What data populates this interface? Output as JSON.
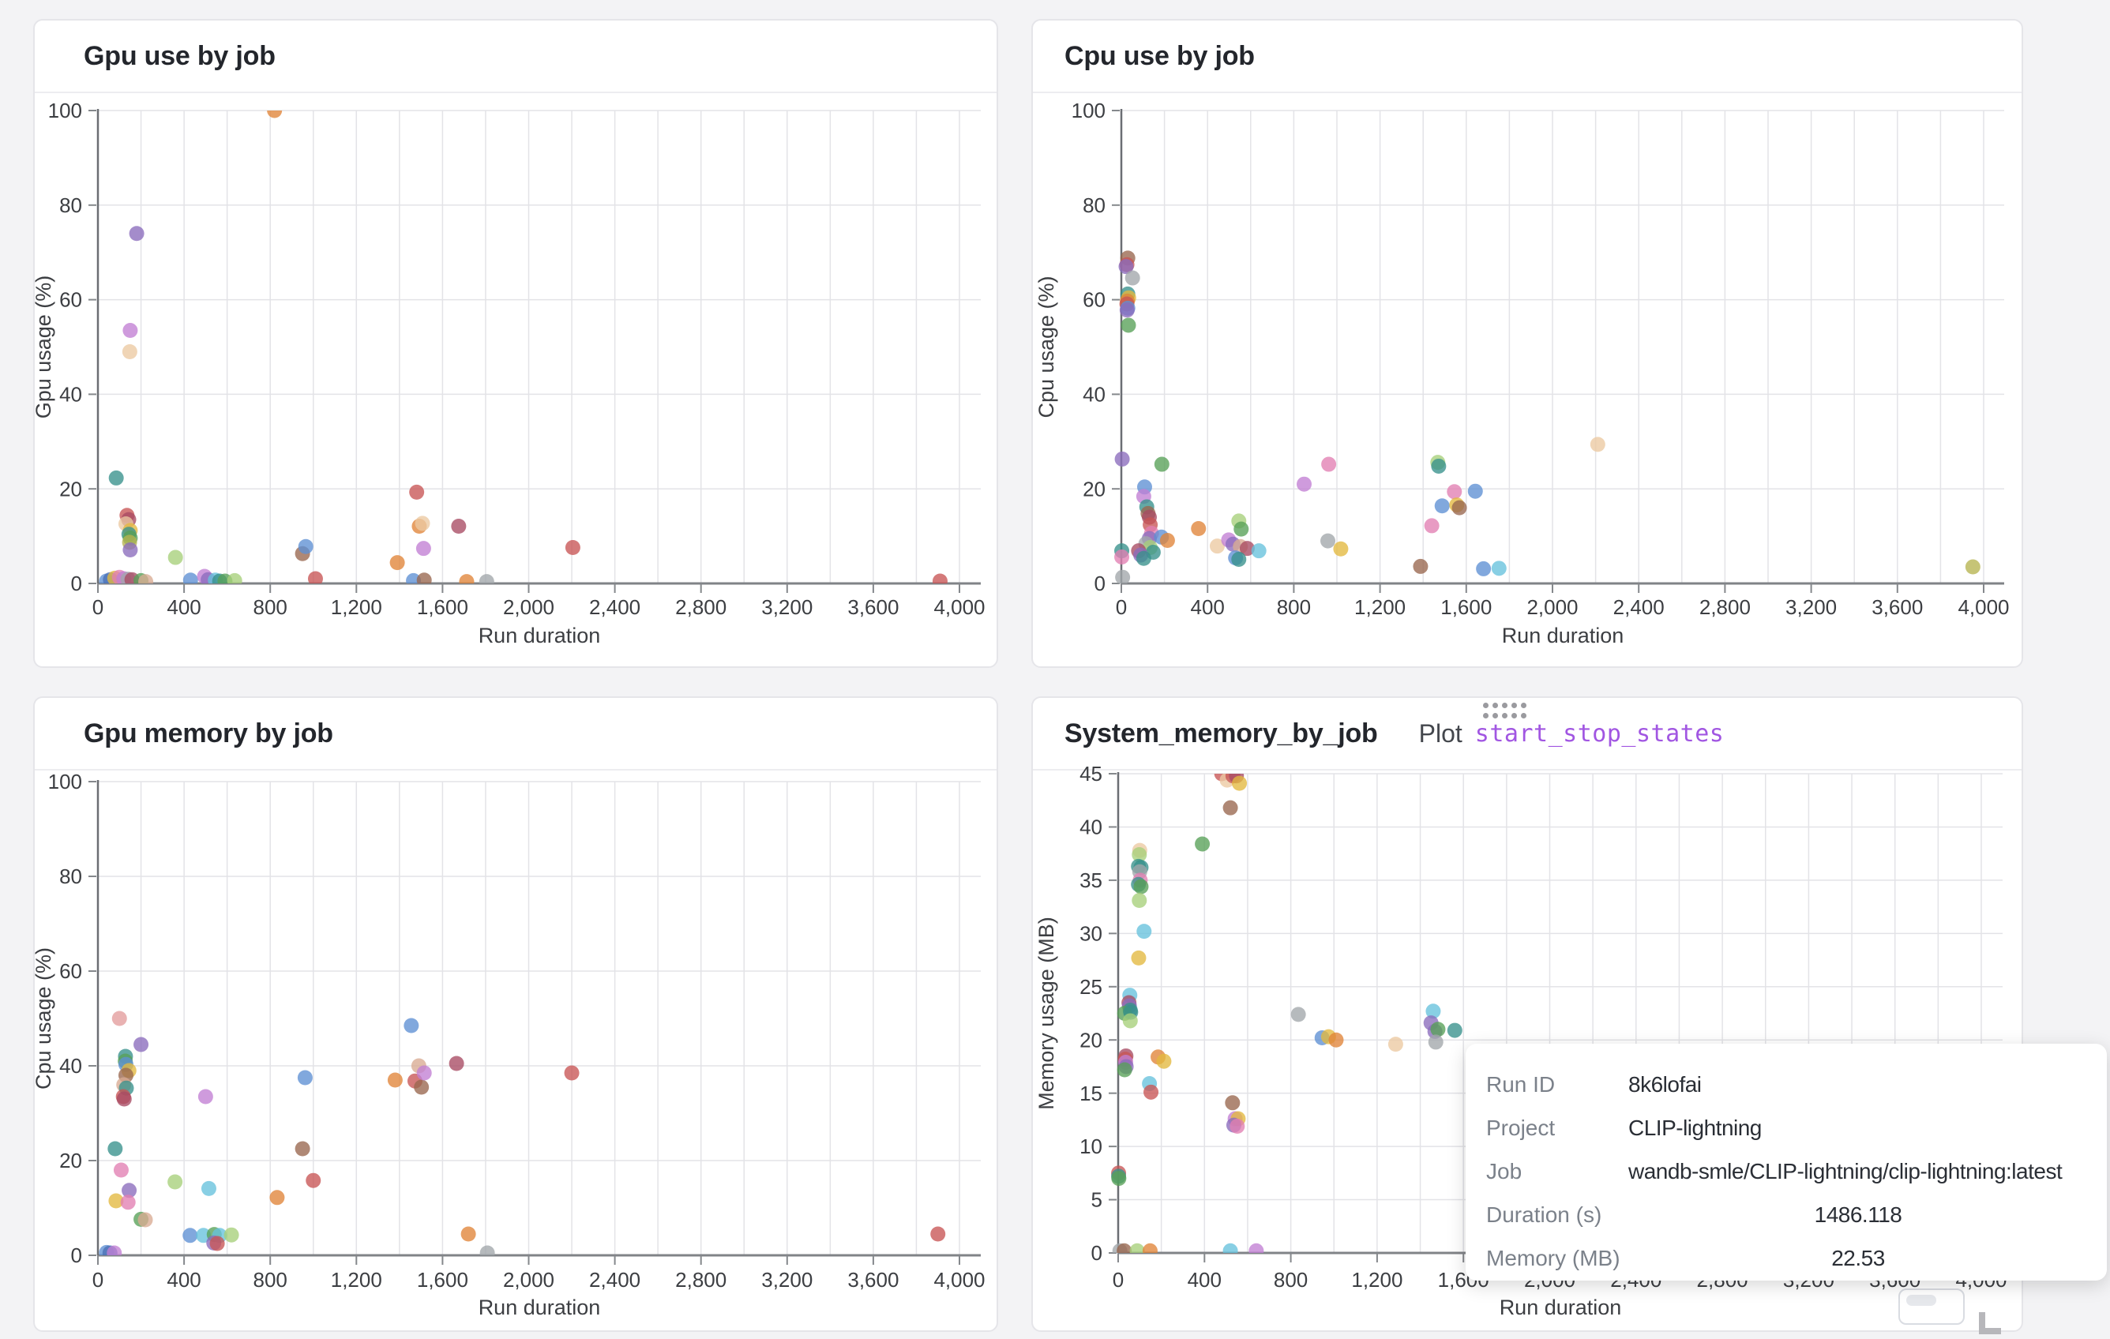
{
  "page": {
    "background": "#f3f3f5",
    "accent_link_color": "#a156e2"
  },
  "palette": {
    "blue": "#5d8fd3",
    "navy": "#4a6fb5",
    "lightblue": "#8ab4e0",
    "orange": "#e08438",
    "peach": "#ecc9a2",
    "tan": "#d8ab92",
    "green": "#57a057",
    "lightgreen": "#a6cf7a",
    "olive": "#b6b350",
    "red": "#c85454",
    "salmon": "#e39c9c",
    "maroon": "#a84a63",
    "purple": "#8a6bbd",
    "orchid": "#c27fd4",
    "pink": "#e17fb2",
    "brown": "#99664e",
    "gray": "#a2a6ab",
    "yellow": "#e3b93f",
    "cyan": "#67c2dc",
    "teal": "#37918c"
  },
  "chart_data": [
    {
      "type": "scatter",
      "title": "Gpu use by job",
      "xlabel": "Run duration",
      "ylabel": "Gpu usage (%)",
      "xlim": [
        0,
        4000
      ],
      "ylim": [
        0,
        100
      ],
      "xticks": [
        0,
        400,
        800,
        1200,
        1600,
        2000,
        2400,
        2800,
        3200,
        3600,
        4000
      ],
      "yticks": [
        0,
        20,
        40,
        60,
        80,
        100
      ],
      "xgrid_step": 200,
      "grid": true,
      "legend": "none",
      "points": [
        [
          820,
          100,
          "orange"
        ],
        [
          180,
          74,
          "purple"
        ],
        [
          150,
          53.5,
          "orchid"
        ],
        [
          148,
          49,
          "peach"
        ],
        [
          85,
          22.3,
          "teal"
        ],
        [
          135,
          14.4,
          "red"
        ],
        [
          143,
          13.5,
          "maroon"
        ],
        [
          130,
          12.6,
          "peach"
        ],
        [
          150,
          11.2,
          "yellow"
        ],
        [
          144,
          10.4,
          "teal"
        ],
        [
          150,
          9.6,
          "green"
        ],
        [
          147,
          8.7,
          "olive"
        ],
        [
          150,
          7.1,
          "purple"
        ],
        [
          360,
          5.5,
          "lightgreen"
        ],
        [
          40,
          0.5,
          "blue"
        ],
        [
          58,
          0.8,
          "navy"
        ],
        [
          78,
          1.1,
          "yellow"
        ],
        [
          100,
          1.3,
          "pink"
        ],
        [
          120,
          1.0,
          "orchid"
        ],
        [
          140,
          0.9,
          "gray"
        ],
        [
          158,
          0.8,
          "maroon"
        ],
        [
          200,
          0.6,
          "green"
        ],
        [
          222,
          0.4,
          "tan"
        ],
        [
          430,
          0.7,
          "blue"
        ],
        [
          495,
          1.5,
          "orchid"
        ],
        [
          512,
          0.8,
          "purple"
        ],
        [
          545,
          0.7,
          "cyan"
        ],
        [
          565,
          0.5,
          "teal"
        ],
        [
          590,
          0.5,
          "green"
        ],
        [
          635,
          0.6,
          "lightgreen"
        ],
        [
          950,
          6.3,
          "brown"
        ],
        [
          965,
          7.8,
          "blue"
        ],
        [
          1010,
          1.0,
          "red"
        ],
        [
          1390,
          4.4,
          "orange"
        ],
        [
          1465,
          0.6,
          "blue"
        ],
        [
          1480,
          19.3,
          "red"
        ],
        [
          1492,
          12.1,
          "orange"
        ],
        [
          1507,
          12.7,
          "peach"
        ],
        [
          1512,
          7.4,
          "orchid"
        ],
        [
          1515,
          0.7,
          "brown"
        ],
        [
          1675,
          12.1,
          "maroon"
        ],
        [
          1712,
          0.4,
          "orange"
        ],
        [
          1805,
          0.4,
          "gray"
        ],
        [
          2205,
          7.6,
          "red"
        ],
        [
          3910,
          0.5,
          "red"
        ]
      ]
    },
    {
      "type": "scatter",
      "title": "Cpu use by job",
      "xlabel": "Run duration",
      "ylabel": "Cpu usage (%)",
      "xlim": [
        0,
        4000
      ],
      "ylim": [
        0,
        100
      ],
      "xticks": [
        0,
        400,
        800,
        1200,
        1600,
        2000,
        2400,
        2800,
        3200,
        3600,
        4000
      ],
      "yticks": [
        0,
        20,
        40,
        60,
        80,
        100
      ],
      "xgrid_step": 200,
      "grid": true,
      "legend": "none",
      "points": [
        [
          30,
          68.8,
          "brown"
        ],
        [
          26,
          67.4,
          "red"
        ],
        [
          22,
          67.0,
          "purple"
        ],
        [
          52,
          64.6,
          "gray"
        ],
        [
          30,
          61.2,
          "teal"
        ],
        [
          34,
          60.4,
          "yellow"
        ],
        [
          28,
          59.7,
          "orange"
        ],
        [
          26,
          59.1,
          "red"
        ],
        [
          30,
          58.2,
          "blue"
        ],
        [
          27,
          57.8,
          "purple"
        ],
        [
          33,
          54.6,
          "green"
        ],
        [
          4,
          26.3,
          "purple"
        ],
        [
          188,
          25.2,
          "green"
        ],
        [
          108,
          20.4,
          "blue"
        ],
        [
          104,
          18.4,
          "orchid"
        ],
        [
          118,
          16.2,
          "teal"
        ],
        [
          124,
          14.8,
          "brown"
        ],
        [
          130,
          14.0,
          "maroon"
        ],
        [
          134,
          12.4,
          "red"
        ],
        [
          140,
          10.6,
          "pink"
        ],
        [
          130,
          9.5,
          "purple"
        ],
        [
          186,
          9.8,
          "blue"
        ],
        [
          214,
          9.1,
          "orange"
        ],
        [
          114,
          8.4,
          "gray"
        ],
        [
          134,
          7.6,
          "lightgreen"
        ],
        [
          148,
          6.6,
          "teal"
        ],
        [
          80,
          6.9,
          "maroon"
        ],
        [
          90,
          6.0,
          "purple"
        ],
        [
          104,
          5.3,
          "teal"
        ],
        [
          2,
          6.9,
          "teal"
        ],
        [
          2,
          5.6,
          "pink"
        ],
        [
          6,
          1.3,
          "gray"
        ],
        [
          358,
          11.6,
          "orange"
        ],
        [
          445,
          7.9,
          "peach"
        ],
        [
          498,
          9.2,
          "orchid"
        ],
        [
          518,
          8.3,
          "purple"
        ],
        [
          545,
          13.2,
          "lightgreen"
        ],
        [
          556,
          11.5,
          "green"
        ],
        [
          552,
          7.8,
          "tan"
        ],
        [
          584,
          7.4,
          "maroon"
        ],
        [
          530,
          5.4,
          "blue"
        ],
        [
          545,
          5.1,
          "teal"
        ],
        [
          638,
          6.9,
          "cyan"
        ],
        [
          848,
          21.0,
          "orchid"
        ],
        [
          962,
          25.2,
          "pink"
        ],
        [
          958,
          9.0,
          "gray"
        ],
        [
          1018,
          7.3,
          "yellow"
        ],
        [
          1388,
          3.6,
          "brown"
        ],
        [
          1440,
          12.2,
          "pink"
        ],
        [
          1468,
          25.6,
          "lightgreen"
        ],
        [
          1472,
          24.8,
          "teal"
        ],
        [
          1488,
          16.4,
          "blue"
        ],
        [
          1545,
          19.4,
          "pink"
        ],
        [
          1556,
          16.6,
          "yellow"
        ],
        [
          1568,
          16.0,
          "brown"
        ],
        [
          1642,
          19.5,
          "blue"
        ],
        [
          1680,
          3.1,
          "blue"
        ],
        [
          1752,
          3.2,
          "cyan"
        ],
        [
          2210,
          29.4,
          "peach"
        ],
        [
          3950,
          3.5,
          "olive"
        ]
      ]
    },
    {
      "type": "scatter",
      "title": "Gpu memory by job",
      "xlabel": "Run duration",
      "ylabel": "Cpu usage (%)",
      "xlim": [
        0,
        4000
      ],
      "ylim": [
        0,
        100
      ],
      "xticks": [
        0,
        400,
        800,
        1200,
        1600,
        2000,
        2400,
        2800,
        3200,
        3600,
        4000
      ],
      "yticks": [
        0,
        20,
        40,
        60,
        80,
        100
      ],
      "xgrid_step": 200,
      "grid": true,
      "legend": "none",
      "points": [
        [
          100,
          50,
          "salmon"
        ],
        [
          200,
          44.5,
          "purple"
        ],
        [
          128,
          42,
          "teal"
        ],
        [
          127,
          41,
          "green"
        ],
        [
          130,
          40.3,
          "blue"
        ],
        [
          144,
          39,
          "yellow"
        ],
        [
          130,
          38,
          "brown"
        ],
        [
          120,
          36,
          "tan"
        ],
        [
          132,
          35.3,
          "teal"
        ],
        [
          118,
          33.5,
          "red"
        ],
        [
          122,
          33,
          "maroon"
        ],
        [
          500,
          33.5,
          "orchid"
        ],
        [
          80,
          22.5,
          "teal"
        ],
        [
          108,
          18,
          "pink"
        ],
        [
          358,
          15.5,
          "lightgreen"
        ],
        [
          145,
          13.7,
          "purple"
        ],
        [
          515,
          14.1,
          "cyan"
        ],
        [
          84,
          11.5,
          "yellow"
        ],
        [
          140,
          11.2,
          "pink"
        ],
        [
          200,
          7.6,
          "green"
        ],
        [
          220,
          7.5,
          "tan"
        ],
        [
          428,
          4.2,
          "blue"
        ],
        [
          490,
          4.2,
          "cyan"
        ],
        [
          540,
          4.4,
          "green"
        ],
        [
          565,
          4.2,
          "cyan"
        ],
        [
          620,
          4.3,
          "lightgreen"
        ],
        [
          538,
          2.6,
          "purple"
        ],
        [
          554,
          2.5,
          "red"
        ],
        [
          40,
          0.6,
          "blue"
        ],
        [
          56,
          0.5,
          "navy"
        ],
        [
          76,
          0.5,
          "orchid"
        ],
        [
          832,
          12.2,
          "orange"
        ],
        [
          950,
          22.5,
          "brown"
        ],
        [
          962,
          37.5,
          "blue"
        ],
        [
          1000,
          15.8,
          "red"
        ],
        [
          1380,
          37,
          "orange"
        ],
        [
          1455,
          48.5,
          "blue"
        ],
        [
          1472,
          36.8,
          "red"
        ],
        [
          1490,
          40,
          "tan"
        ],
        [
          1502,
          35.5,
          "brown"
        ],
        [
          1515,
          38.5,
          "orchid"
        ],
        [
          1665,
          40.5,
          "maroon"
        ],
        [
          1720,
          4.5,
          "orange"
        ],
        [
          1808,
          0.5,
          "gray"
        ],
        [
          2200,
          38.5,
          "red"
        ],
        [
          3900,
          4.5,
          "red"
        ]
      ]
    },
    {
      "type": "scatter",
      "title": "System_memory_by_job",
      "plot_label": "Plot",
      "plot_link": "start_stop_states",
      "xlabel": "Run duration",
      "ylabel": "Memory usage (MB)",
      "xlim": [
        0,
        4000
      ],
      "ylim": [
        0,
        45
      ],
      "xticks": [
        0,
        400,
        800,
        1200,
        1600,
        2000,
        2400,
        2800,
        3200,
        3600,
        4000
      ],
      "yticks": [
        0,
        5,
        10,
        15,
        20,
        25,
        30,
        35,
        40,
        45
      ],
      "xgrid_step": 200,
      "grid": true,
      "legend": "none",
      "points": [
        [
          480,
          45,
          "red"
        ],
        [
          505,
          44.4,
          "peach"
        ],
        [
          532,
          44.8,
          "red"
        ],
        [
          548,
          44.8,
          "maroon"
        ],
        [
          562,
          44.1,
          "yellow"
        ],
        [
          520,
          41.8,
          "brown"
        ],
        [
          390,
          38.4,
          "green"
        ],
        [
          100,
          37.8,
          "peach"
        ],
        [
          98,
          37.4,
          "lightgreen"
        ],
        [
          94,
          36.3,
          "teal"
        ],
        [
          106,
          36.2,
          "teal"
        ],
        [
          100,
          35.8,
          "gray"
        ],
        [
          102,
          35.0,
          "pink"
        ],
        [
          94,
          34.6,
          "teal"
        ],
        [
          106,
          34.4,
          "green"
        ],
        [
          98,
          33.1,
          "lightgreen"
        ],
        [
          120,
          30.2,
          "cyan"
        ],
        [
          95,
          27.7,
          "yellow"
        ],
        [
          54,
          24.2,
          "cyan"
        ],
        [
          50,
          23.5,
          "maroon"
        ],
        [
          52,
          23.2,
          "purple"
        ],
        [
          56,
          22.8,
          "teal"
        ],
        [
          30,
          22.5,
          "green"
        ],
        [
          58,
          22.6,
          "teal"
        ],
        [
          56,
          21.8,
          "lightgreen"
        ],
        [
          36,
          18.5,
          "maroon"
        ],
        [
          33,
          18.2,
          "red"
        ],
        [
          35,
          17.9,
          "orchid"
        ],
        [
          37,
          17.5,
          "purple"
        ],
        [
          30,
          17.2,
          "green"
        ],
        [
          185,
          18.4,
          "orange"
        ],
        [
          212,
          18.0,
          "yellow"
        ],
        [
          145,
          15.9,
          "cyan"
        ],
        [
          152,
          15.1,
          "red"
        ],
        [
          530,
          14.1,
          "brown"
        ],
        [
          542,
          12.6,
          "orchid"
        ],
        [
          556,
          12.6,
          "yellow"
        ],
        [
          536,
          12.0,
          "purple"
        ],
        [
          552,
          11.9,
          "pink"
        ],
        [
          2,
          7.5,
          "red"
        ],
        [
          2,
          7.2,
          "teal"
        ],
        [
          3,
          7.0,
          "green"
        ],
        [
          8,
          0.2,
          "gray"
        ],
        [
          28,
          0.2,
          "brown"
        ],
        [
          88,
          0.2,
          "lightgreen"
        ],
        [
          148,
          0.2,
          "orange"
        ],
        [
          520,
          0.2,
          "cyan"
        ],
        [
          640,
          0.2,
          "orchid"
        ],
        [
          835,
          22.4,
          "gray"
        ],
        [
          945,
          20.2,
          "blue"
        ],
        [
          975,
          20.3,
          "yellow"
        ],
        [
          1010,
          20.0,
          "orange"
        ],
        [
          1286,
          19.6,
          "peach"
        ],
        [
          1460,
          22.7,
          "cyan"
        ],
        [
          1450,
          21.6,
          "purple"
        ],
        [
          1468,
          20.8,
          "purple"
        ],
        [
          1482,
          21.0,
          "green"
        ],
        [
          1472,
          19.8,
          "gray"
        ],
        [
          1560,
          20.9,
          "teal"
        ]
      ]
    }
  ],
  "tooltip": {
    "rows": [
      {
        "label": "Run ID",
        "value": "8k6lofai",
        "center": false
      },
      {
        "label": "Project",
        "value": "CLIP-lightning",
        "center": false
      },
      {
        "label": "Job",
        "value": "wandb-smle/CLIP-lightning/clip-lightning:latest",
        "center": false
      },
      {
        "label": "Duration (s)",
        "value": "1486.118",
        "center": true
      },
      {
        "label": "Memory (MB)",
        "value": "22.53",
        "center": true
      }
    ]
  }
}
